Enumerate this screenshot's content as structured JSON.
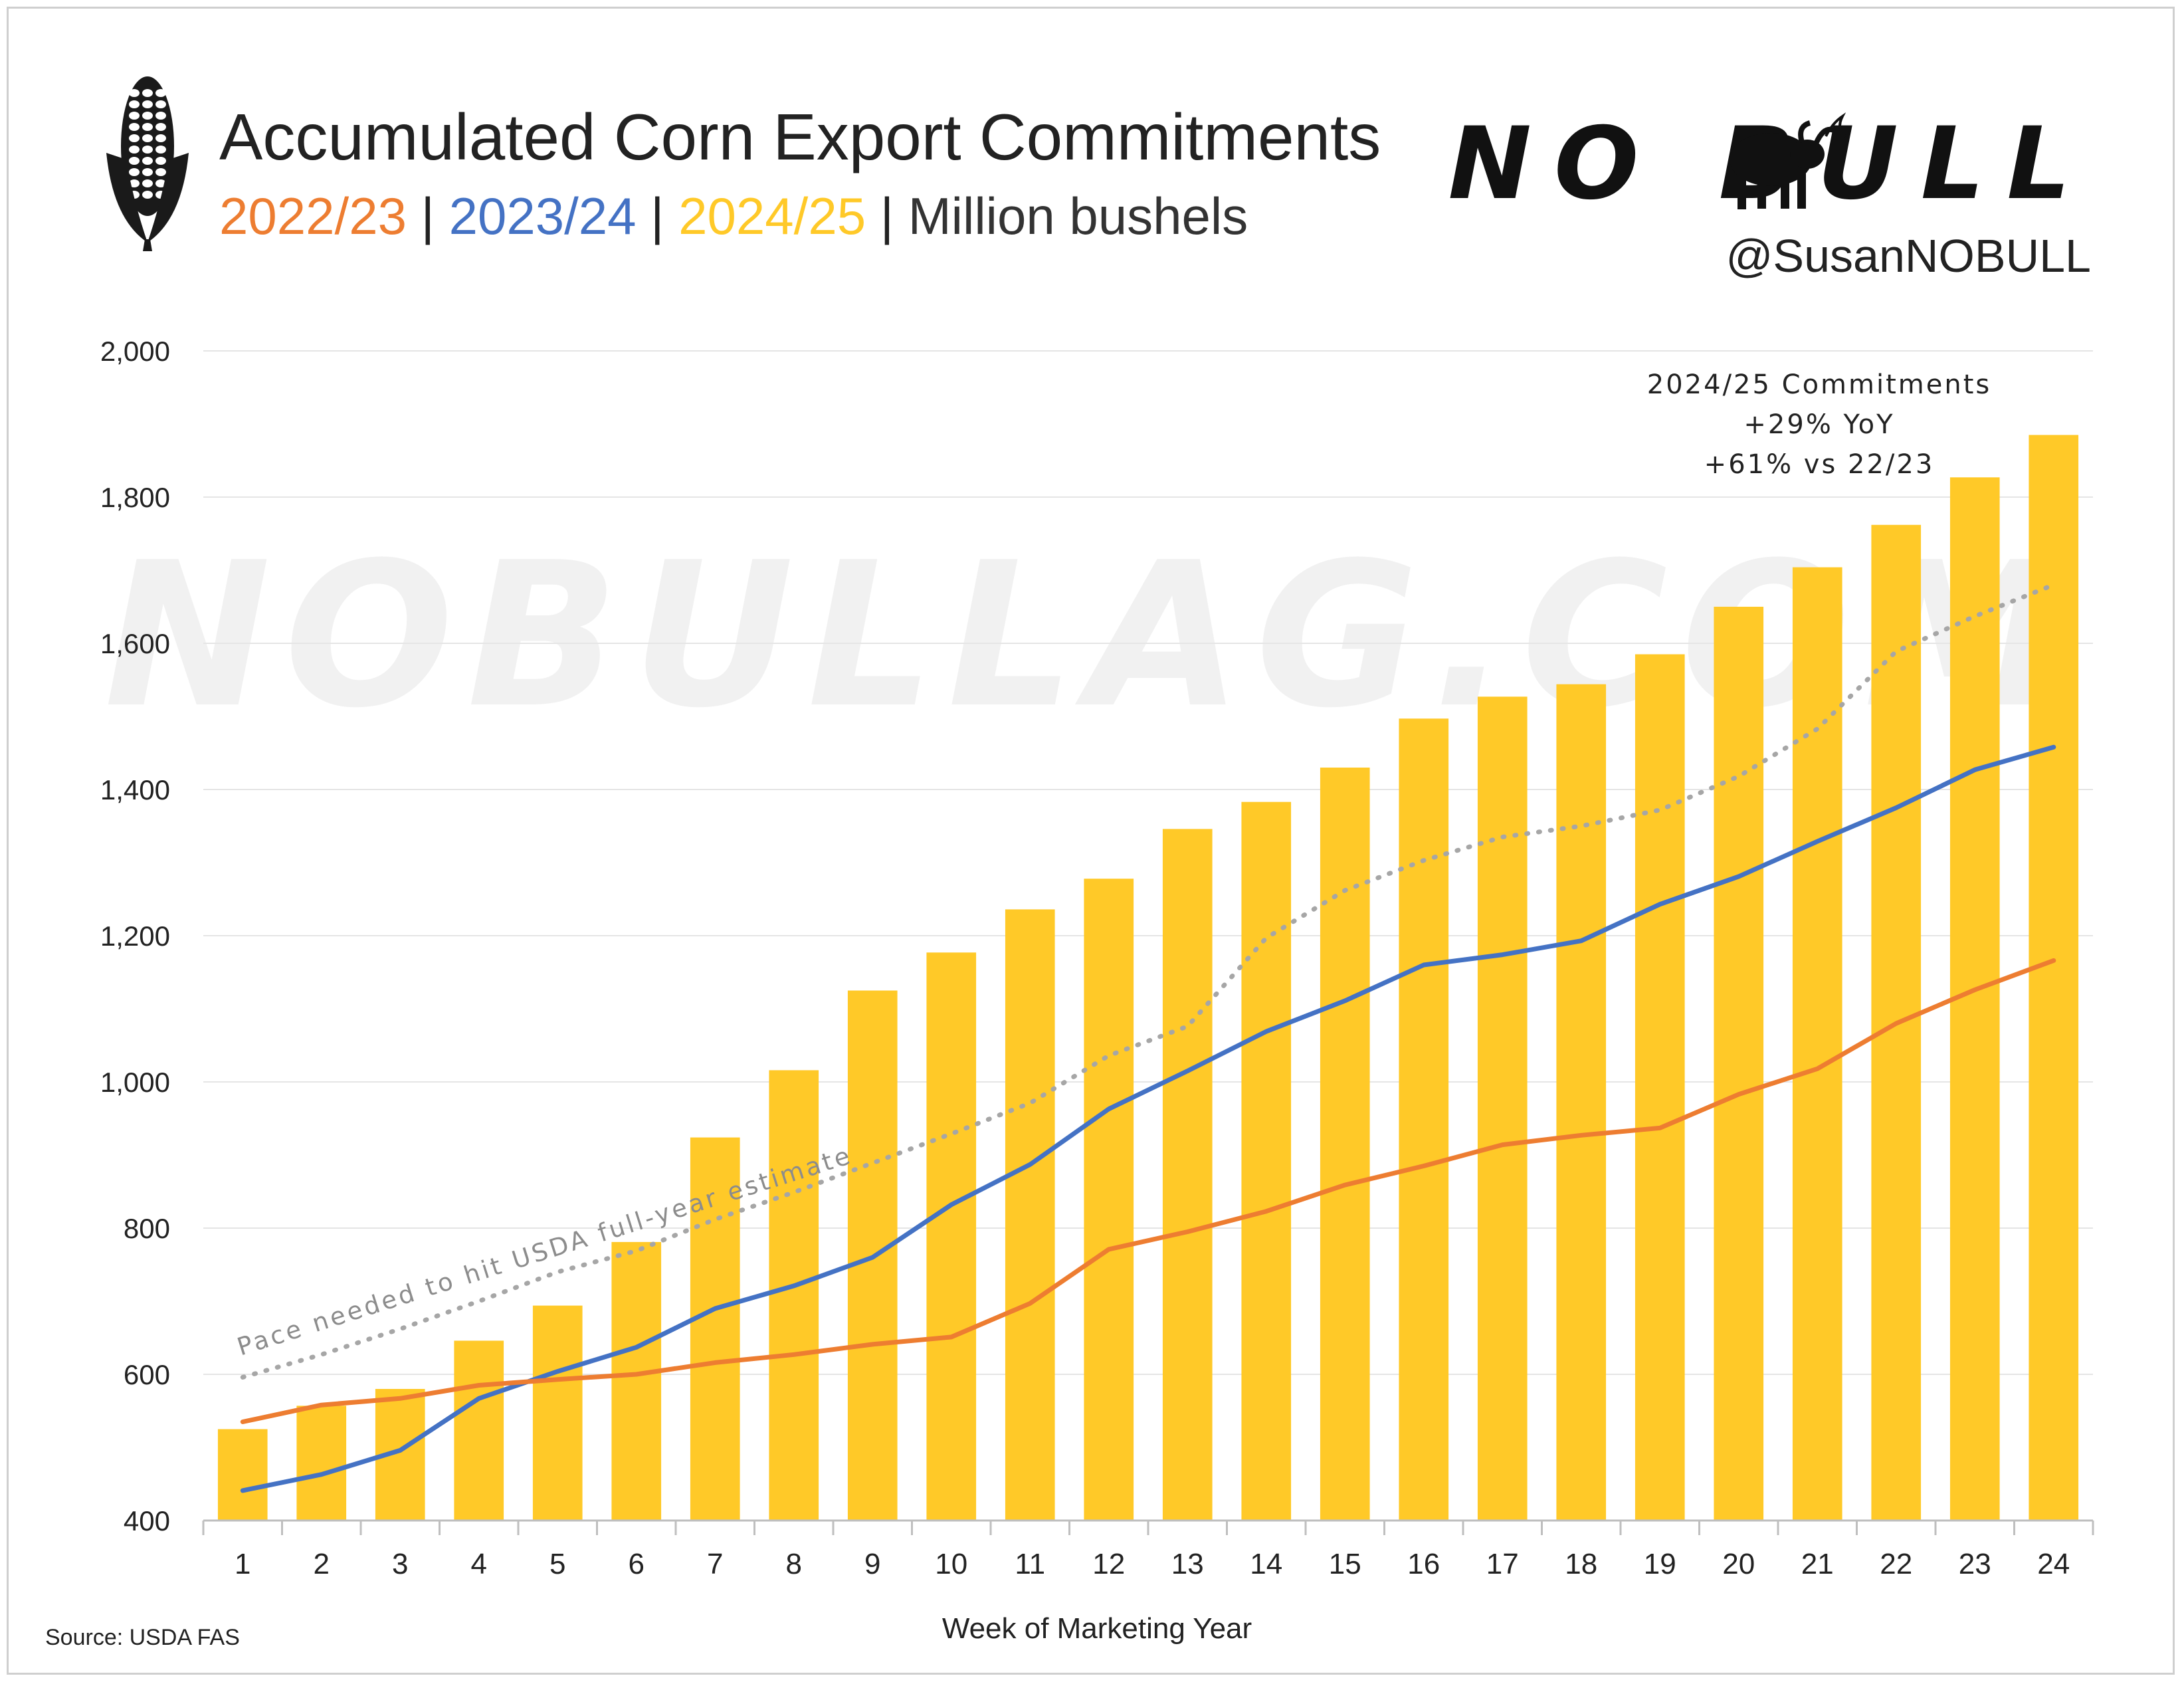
{
  "header": {
    "title": "Accumulated Corn Export Commitments",
    "subtitle": {
      "s1": "2022/23",
      "sep1": " | ",
      "s2": "2023/24",
      "sep2": " | ",
      "s3": "2024/25",
      "sep3": " | ",
      "unit": "Million bushels"
    },
    "logo_text": "NO BULL",
    "handle": "@SusanNOBULL",
    "watermark": "NOBULLAG.COM"
  },
  "source": "Source: USDA FAS",
  "colors": {
    "s2022": "#ED7D31",
    "s2023": "#4472C4",
    "s2024": "#FFC928",
    "pace": "#A6A6A6",
    "grid": "#E5E5E5"
  },
  "chart_data": {
    "type": "bar",
    "xlabel": "Week of Marketing Year",
    "ylabel": "",
    "ylim": [
      400,
      2000
    ],
    "yticks": [
      400,
      600,
      800,
      1000,
      1200,
      1400,
      1600,
      1800,
      2000
    ],
    "ytick_labels": [
      "400",
      "600",
      "800",
      "1,000",
      "1,200",
      "1,400",
      "1,600",
      "1,800",
      "2,000"
    ],
    "grid": true,
    "categories": [
      "1",
      "2",
      "3",
      "4",
      "5",
      "6",
      "7",
      "8",
      "9",
      "10",
      "11",
      "12",
      "13",
      "14",
      "15",
      "16",
      "17",
      "18",
      "19",
      "20",
      "21",
      "22",
      "23",
      "24"
    ],
    "series": [
      {
        "name": "2024/25",
        "kind": "bar",
        "values": [
          525,
          557,
          580,
          646,
          694,
          781,
          924,
          1016,
          1125,
          1177,
          1236,
          1278,
          1346,
          1383,
          1430,
          1497,
          1527,
          1544,
          1585,
          1650,
          1704,
          1762,
          1827,
          1885
        ]
      },
      {
        "name": "2023/24",
        "kind": "line",
        "values": [
          441,
          463,
          496,
          567,
          604,
          637,
          690,
          721,
          760,
          832,
          887,
          963,
          1015,
          1069,
          1111,
          1160,
          1174,
          1193,
          1243,
          1281,
          1329,
          1375,
          1427,
          1458
        ]
      },
      {
        "name": "2022/23",
        "kind": "line",
        "values": [
          535,
          558,
          567,
          585,
          593,
          600,
          616,
          627,
          641,
          651,
          697,
          771,
          795,
          823,
          859,
          885,
          914,
          927,
          937,
          983,
          1018,
          1080,
          1126,
          1166
        ]
      },
      {
        "name": "",
        "kind": "dotted-line",
        "values": [
          596,
          627,
          662,
          700,
          740,
          769,
          812,
          849,
          889,
          929,
          971,
          1036,
          1076,
          1197,
          1262,
          1303,
          1335,
          1350,
          1372,
          1418,
          1483,
          1589,
          1637,
          1680
        ]
      }
    ],
    "annotations": {
      "pace_label": "Pace needed to hit USDA full-year estimate",
      "callout": [
        "2024/25 Commitments",
        "+29% YoY",
        "+61% vs 22/23"
      ]
    }
  }
}
